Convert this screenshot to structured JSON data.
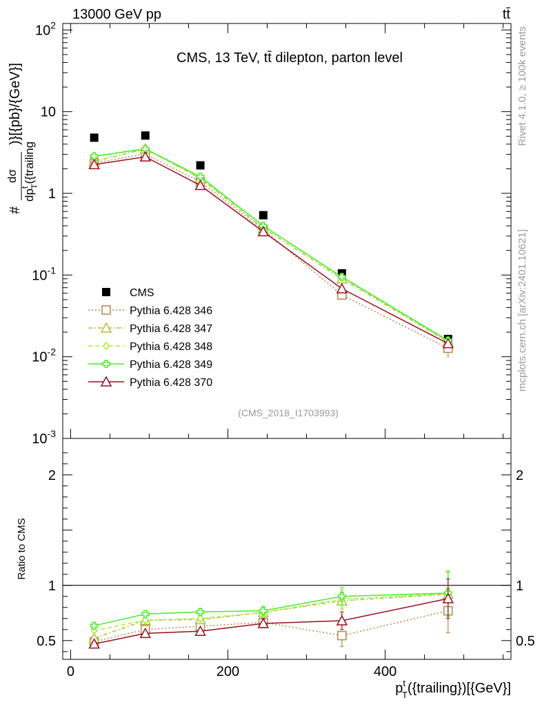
{
  "header": {
    "energy_label": "13000 GeV pp",
    "process_label": "tt̄",
    "title": "CMS, 13 TeV, tt̄ dilepton, parton level",
    "analysis_id": "(CMS_2018_I1703993)",
    "side_text_top": "Rivet 4.1.0, ≥ 100k events",
    "side_text_bottom": "mcplots.cern.ch [arXiv:2401.10621]"
  },
  "colors": {
    "cms": "#000000",
    "p346": "#b5864a",
    "p347": "#a8c23a",
    "p348": "#aaee33",
    "p349": "#44ee22",
    "p370": "#990d1d"
  },
  "chart_data": [
    {
      "type": "scatter",
      "title": "CMS, 13 TeV, tt̄ dilepton, parton level",
      "xlabel": "p_T^t({trailing})[{GeV}]",
      "ylabel": "# dσ / dp_T^t({trailing})[{pb}/{GeV}]",
      "yscale": "log",
      "xlim": [
        -10,
        560
      ],
      "ylim": [
        0.001,
        120
      ],
      "y_ticks": [
        {
          "value": 100,
          "label": "10^2"
        },
        {
          "value": 10,
          "label": "10"
        },
        {
          "value": 1,
          "label": "1"
        },
        {
          "value": 0.1,
          "label": "10^-1"
        },
        {
          "value": 0.01,
          "label": "10^-2"
        },
        {
          "value": 0.001,
          "label": "10^-3"
        }
      ],
      "x": [
        30,
        95,
        165,
        245,
        345,
        480
      ],
      "series": [
        {
          "name": "CMS",
          "key": "cms",
          "marker": "square-filled",
          "line": "none",
          "values": [
            4.8,
            5.1,
            2.2,
            0.54,
            0.105,
            0.0165
          ]
        },
        {
          "name": "Pythia 6.428 346",
          "key": "p346",
          "marker": "square-open",
          "line": "dotted",
          "values": [
            2.35,
            3.05,
            1.38,
            0.36,
            0.057,
            0.0127
          ],
          "err_lo": [
            0,
            0,
            0,
            0,
            0,
            0.003
          ],
          "err_hi": [
            0,
            0,
            0,
            0,
            0,
            0.003
          ]
        },
        {
          "name": "Pythia 6.428 347",
          "key": "p347",
          "marker": "triangle-open",
          "line": "dashdot",
          "values": [
            2.45,
            3.5,
            1.52,
            0.375,
            0.09,
            0.0152
          ]
        },
        {
          "name": "Pythia 6.428 348",
          "key": "p348",
          "marker": "diamond-open",
          "line": "dashed",
          "values": [
            2.85,
            3.5,
            1.55,
            0.4,
            0.094,
            0.0155
          ]
        },
        {
          "name": "Pythia 6.428 349",
          "key": "p349",
          "marker": "cross-open",
          "line": "solid",
          "values": [
            2.85,
            3.5,
            1.6,
            0.4,
            0.095,
            0.0158
          ]
        },
        {
          "name": "Pythia 6.428 370",
          "key": "p370",
          "marker": "triangle-open",
          "line": "solid",
          "values": [
            2.25,
            2.8,
            1.25,
            0.34,
            0.068,
            0.0145
          ]
        }
      ]
    },
    {
      "type": "line",
      "ylabel": "Ratio to CMS",
      "xlabel": "p_T^t({trailing})[{GeV}]",
      "xlim": [
        -10,
        560
      ],
      "ylim": [
        0.33,
        2.33
      ],
      "x_ticks": [
        0,
        200,
        400
      ],
      "y_ticks": [
        0.5,
        1,
        2
      ],
      "reference_line": 1,
      "x": [
        30,
        95,
        165,
        245,
        345,
        480
      ],
      "series": [
        {
          "name": "Pythia 6.428 346",
          "key": "p346",
          "marker": "square-open",
          "line": "dotted",
          "values": [
            0.49,
            0.6,
            0.63,
            0.665,
            0.545,
            0.77
          ],
          "err_lo": [
            0.02,
            0.02,
            0.02,
            0.04,
            0.1,
            0.2
          ],
          "err_hi": [
            0.02,
            0.02,
            0.02,
            0.04,
            0.03,
            0.2
          ]
        },
        {
          "name": "Pythia 6.428 347",
          "key": "p347",
          "marker": "triangle-open",
          "line": "dashdot",
          "values": [
            0.52,
            0.685,
            0.69,
            0.755,
            0.86,
            0.92
          ],
          "err_lo": [
            0.02,
            0.02,
            0.03,
            0.04,
            0.08,
            0.2
          ],
          "err_hi": [
            0.02,
            0.02,
            0.03,
            0.04,
            0.08,
            0.2
          ]
        },
        {
          "name": "Pythia 6.428 348",
          "key": "p348",
          "marker": "diamond-open",
          "line": "dashed",
          "values": [
            0.59,
            0.685,
            0.7,
            0.755,
            0.875,
            0.925
          ],
          "err_lo": [
            0.02,
            0.02,
            0.03,
            0.04,
            0.08,
            0.2
          ],
          "err_hi": [
            0.02,
            0.02,
            0.03,
            0.04,
            0.08,
            0.2
          ]
        },
        {
          "name": "Pythia 6.428 349",
          "key": "p349",
          "marker": "cross-open",
          "line": "solid",
          "values": [
            0.635,
            0.74,
            0.76,
            0.77,
            0.9,
            0.93
          ],
          "err_lo": [
            0.02,
            0.02,
            0.03,
            0.04,
            0.08,
            0.2
          ],
          "err_hi": [
            0.02,
            0.02,
            0.03,
            0.04,
            0.08,
            0.2
          ]
        },
        {
          "name": "Pythia 6.428 370",
          "key": "p370",
          "marker": "triangle-open",
          "line": "solid",
          "values": [
            0.47,
            0.565,
            0.585,
            0.655,
            0.68,
            0.88
          ],
          "err_lo": [
            0.02,
            0.02,
            0.02,
            0.04,
            0.08,
            0.18
          ],
          "err_hi": [
            0.02,
            0.02,
            0.02,
            0.04,
            0.08,
            0.18
          ]
        }
      ]
    }
  ]
}
